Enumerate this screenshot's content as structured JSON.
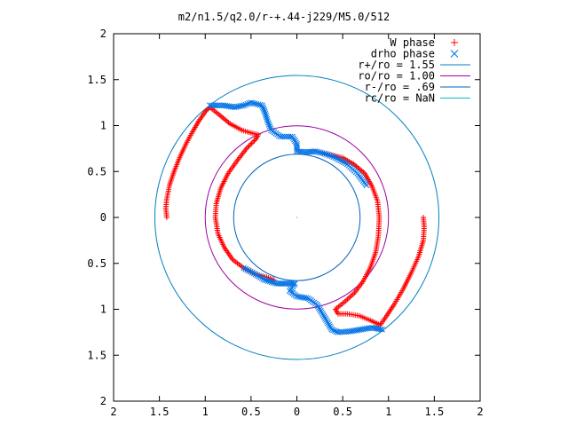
{
  "chart_data": {
    "type": "scatter",
    "title": "m2/n1.5/q2.0/r-+.44-j229/M5.0/512",
    "xlim": [
      -2,
      2
    ],
    "ylim": [
      -2,
      2
    ],
    "x_ticks": [
      {
        "value": -2,
        "label": "2"
      },
      {
        "value": -1.5,
        "label": "1.5"
      },
      {
        "value": -1,
        "label": "1"
      },
      {
        "value": -0.5,
        "label": "0.5"
      },
      {
        "value": 0,
        "label": "0"
      },
      {
        "value": 0.5,
        "label": "0.5"
      },
      {
        "value": 1,
        "label": "1"
      },
      {
        "value": 1.5,
        "label": "1.5"
      },
      {
        "value": 2,
        "label": "2"
      }
    ],
    "y_ticks": [
      {
        "value": 2,
        "label": "2"
      },
      {
        "value": 1.5,
        "label": "1.5"
      },
      {
        "value": 1,
        "label": "1"
      },
      {
        "value": 0.5,
        "label": "0.5"
      },
      {
        "value": 0,
        "label": "0"
      },
      {
        "value": -0.5,
        "label": "0.5"
      },
      {
        "value": -1,
        "label": "1"
      },
      {
        "value": -1.5,
        "label": "1.5"
      },
      {
        "value": -2,
        "label": "2"
      }
    ],
    "legend_position": "top-right",
    "grid": false,
    "series": [
      {
        "name": "W phase",
        "kind": "points",
        "marker": "plus",
        "color": "#ff0000",
        "arms": [
          [
            [
              -1.42,
              0.0
            ],
            [
              -1.43,
              0.1
            ],
            [
              -1.42,
              0.2
            ],
            [
              -1.39,
              0.35
            ],
            [
              -1.34,
              0.5
            ],
            [
              -1.28,
              0.65
            ],
            [
              -1.21,
              0.8
            ],
            [
              -1.14,
              0.93
            ],
            [
              -1.07,
              1.05
            ],
            [
              -1.0,
              1.15
            ],
            [
              -0.95,
              1.2
            ],
            [
              -0.85,
              1.12
            ],
            [
              -0.73,
              1.02
            ],
            [
              -0.6,
              0.95
            ],
            [
              -0.5,
              0.92
            ],
            [
              -0.42,
              0.9
            ],
            [
              -0.45,
              0.85
            ],
            [
              -0.55,
              0.75
            ],
            [
              -0.65,
              0.62
            ],
            [
              -0.75,
              0.48
            ],
            [
              -0.83,
              0.32
            ],
            [
              -0.88,
              0.15
            ],
            [
              -0.89,
              0.0
            ],
            [
              -0.86,
              -0.18
            ],
            [
              -0.79,
              -0.33
            ],
            [
              -0.7,
              -0.46
            ],
            [
              -0.58,
              -0.55
            ],
            [
              -0.45,
              -0.62
            ],
            [
              -0.33,
              -0.65
            ],
            [
              -0.25,
              -0.68
            ]
          ],
          [
            [
              1.38,
              0.0
            ],
            [
              1.39,
              -0.1
            ],
            [
              1.38,
              -0.25
            ],
            [
              1.33,
              -0.42
            ],
            [
              1.25,
              -0.6
            ],
            [
              1.16,
              -0.78
            ],
            [
              1.06,
              -0.95
            ],
            [
              0.96,
              -1.1
            ],
            [
              0.91,
              -1.17
            ],
            [
              0.8,
              -1.12
            ],
            [
              0.68,
              -1.07
            ],
            [
              0.55,
              -1.05
            ],
            [
              0.45,
              -1.05
            ],
            [
              0.42,
              -1.0
            ],
            [
              0.52,
              -0.92
            ],
            [
              0.63,
              -0.82
            ],
            [
              0.72,
              -0.7
            ],
            [
              0.8,
              -0.55
            ],
            [
              0.86,
              -0.38
            ],
            [
              0.89,
              -0.2
            ],
            [
              0.9,
              0.0
            ],
            [
              0.88,
              0.18
            ],
            [
              0.82,
              0.34
            ],
            [
              0.74,
              0.48
            ],
            [
              0.62,
              0.58
            ],
            [
              0.5,
              0.65
            ],
            [
              0.38,
              0.68
            ],
            [
              0.28,
              0.7
            ]
          ]
        ]
      },
      {
        "name": "drho phase",
        "kind": "points",
        "marker": "cross",
        "color": "#0072e6",
        "arms": [
          [
            [
              -0.95,
              1.22
            ],
            [
              -0.8,
              1.22
            ],
            [
              -0.68,
              1.2
            ],
            [
              -0.58,
              1.22
            ],
            [
              -0.5,
              1.25
            ],
            [
              -0.38,
              1.22
            ],
            [
              -0.35,
              1.15
            ],
            [
              -0.32,
              1.05
            ],
            [
              -0.28,
              0.95
            ],
            [
              -0.18,
              0.88
            ],
            [
              -0.05,
              0.88
            ],
            [
              0.0,
              0.8
            ],
            [
              0.0,
              0.72
            ],
            [
              0.1,
              0.71
            ],
            [
              0.2,
              0.72
            ],
            [
              0.32,
              0.69
            ],
            [
              0.42,
              0.65
            ],
            [
              0.55,
              0.58
            ],
            [
              0.66,
              0.48
            ],
            [
              0.76,
              0.35
            ]
          ],
          [
            [
              0.93,
              -1.22
            ],
            [
              0.82,
              -1.2
            ],
            [
              0.7,
              -1.22
            ],
            [
              0.58,
              -1.24
            ],
            [
              0.45,
              -1.25
            ],
            [
              0.38,
              -1.22
            ],
            [
              0.34,
              -1.15
            ],
            [
              0.28,
              -1.05
            ],
            [
              0.22,
              -0.95
            ],
            [
              0.12,
              -0.88
            ],
            [
              0.0,
              -0.86
            ],
            [
              -0.08,
              -0.8
            ],
            [
              -0.02,
              -0.72
            ],
            [
              -0.12,
              -0.72
            ],
            [
              -0.22,
              -0.72
            ],
            [
              -0.35,
              -0.68
            ],
            [
              -0.45,
              -0.62
            ],
            [
              -0.58,
              -0.55
            ]
          ]
        ]
      },
      {
        "name": "r+/ro = 1.55",
        "kind": "circle",
        "r": 1.55,
        "color": "#0080c0"
      },
      {
        "name": "ro/ro = 1.00",
        "kind": "circle",
        "r": 1.0,
        "color": "#a000a0"
      },
      {
        "name": "r-/ro = .69",
        "kind": "circle",
        "r": 0.69,
        "color": "#0060c0"
      },
      {
        "name": "rc/ro = NaN",
        "kind": "circle",
        "r": null,
        "color": "#00c0c0"
      }
    ]
  }
}
